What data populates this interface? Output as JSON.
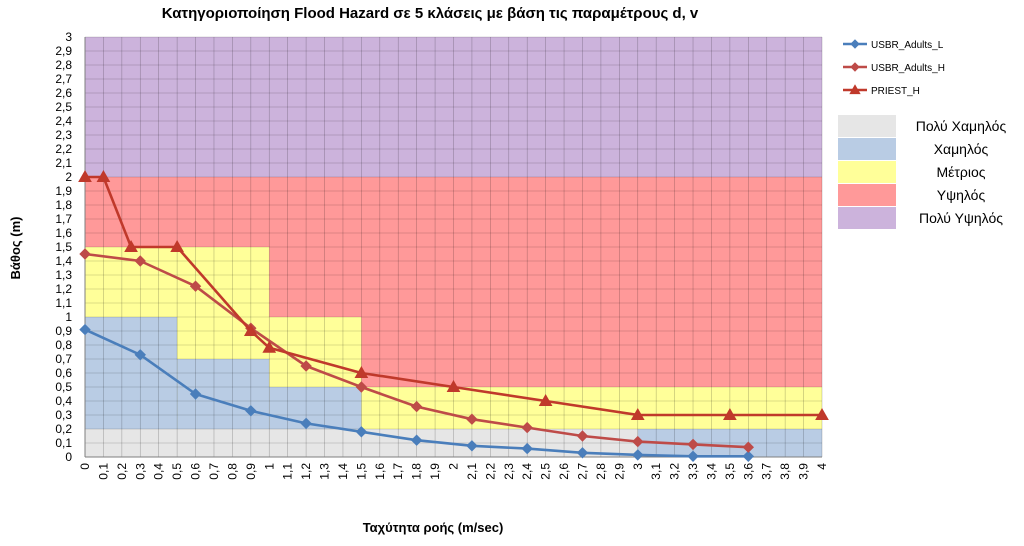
{
  "chart_data": {
    "type": "line",
    "title": "Κατηγοριοποίηση Flood Hazard σε 5 κλάσεις με βάση τις παραμέτρους d, v",
    "xlabel": "Ταχύτητα ροής (m/sec)",
    "ylabel": "Βάθος (m)",
    "xlim": [
      0,
      4
    ],
    "ylim": [
      0,
      3
    ],
    "grid": true,
    "legend_position": "right",
    "x_ticks": [
      "0",
      "0,1",
      "0,2",
      "0,3",
      "0,4",
      "0,5",
      "0,6",
      "0,7",
      "0,8",
      "0,9",
      "1",
      "1,1",
      "1,2",
      "1,3",
      "1,4",
      "1,5",
      "1,6",
      "1,7",
      "1,8",
      "1,9",
      "2",
      "2,1",
      "2,2",
      "2,3",
      "2,4",
      "2,5",
      "2,6",
      "2,7",
      "2,8",
      "2,9",
      "3",
      "3,1",
      "3,2",
      "3,3",
      "3,4",
      "3,5",
      "3,6",
      "3,7",
      "3,8",
      "3,9",
      "4"
    ],
    "y_ticks": [
      "0",
      "0,1",
      "0,2",
      "0,3",
      "0,4",
      "0,5",
      "0,6",
      "0,7",
      "0,8",
      "0,9",
      "1",
      "1,1",
      "1,2",
      "1,3",
      "1,4",
      "1,5",
      "1,6",
      "1,7",
      "1,8",
      "1,9",
      "2",
      "2,1",
      "2,2",
      "2,3",
      "2,4",
      "2,5",
      "2,6",
      "2,7",
      "2,8",
      "2,9",
      "3"
    ],
    "hazard_classes": [
      {
        "name": "Πολύ Χαμηλός",
        "color": "#e6e6e6"
      },
      {
        "name": "Χαμηλός",
        "color": "#b9cce4"
      },
      {
        "name": "Μέτριος",
        "color": "#ffff99"
      },
      {
        "name": "Υψηλός",
        "color": "#ff9999"
      },
      {
        "name": "Πολύ Υψηλός",
        "color": "#ccb3dc"
      }
    ],
    "series": [
      {
        "name": "USBR_Adults_L",
        "color": "#4a7ebb",
        "marker": "diamond",
        "x": [
          0,
          0.3,
          0.6,
          0.9,
          1.2,
          1.5,
          1.8,
          2.1,
          2.4,
          2.7,
          3.0,
          3.3,
          3.6
        ],
        "y": [
          0.91,
          0.73,
          0.45,
          0.33,
          0.24,
          0.18,
          0.12,
          0.08,
          0.06,
          0.03,
          0.015,
          0.005,
          0.005
        ]
      },
      {
        "name": "USBR_Adults_H",
        "color": "#be4b48",
        "marker": "diamond",
        "x": [
          0,
          0.3,
          0.6,
          0.9,
          1.2,
          1.5,
          1.8,
          2.1,
          2.4,
          2.7,
          3.0,
          3.3,
          3.6
        ],
        "y": [
          1.45,
          1.4,
          1.22,
          0.92,
          0.65,
          0.5,
          0.36,
          0.27,
          0.21,
          0.15,
          0.11,
          0.09,
          0.07
        ]
      },
      {
        "name": "PRIEST_H",
        "color": "#c0392b",
        "marker": "triangle",
        "x": [
          0,
          0.1,
          0.25,
          0.5,
          0.9,
          1.0,
          1.5,
          2.0,
          2.5,
          3.0,
          3.5,
          4.0
        ],
        "y": [
          2.0,
          2.0,
          1.5,
          1.5,
          0.9,
          0.78,
          0.6,
          0.5,
          0.4,
          0.3,
          0.3,
          0.3
        ]
      }
    ]
  }
}
